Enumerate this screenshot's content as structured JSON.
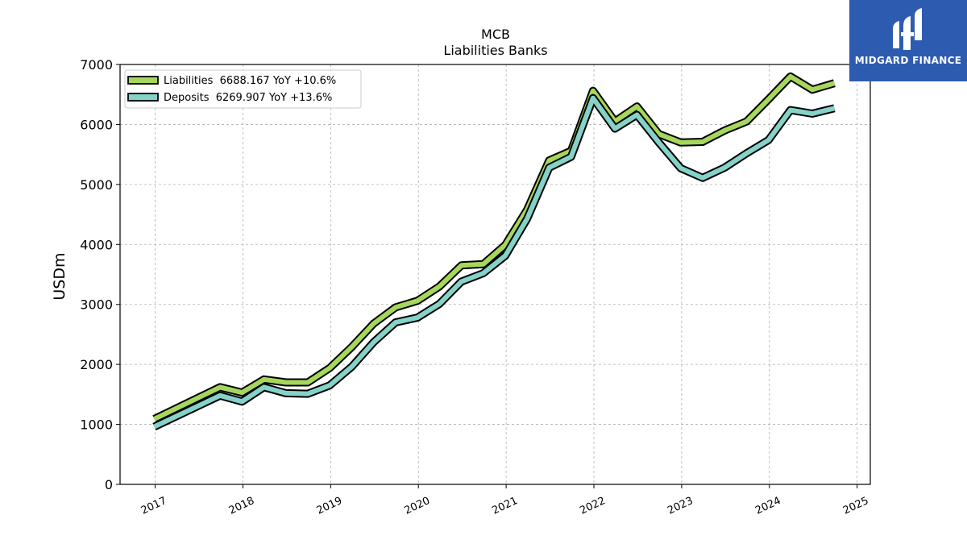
{
  "chart_data": {
    "type": "line",
    "title": "MCB",
    "subtitle": "Liabilities Banks",
    "ylabel": "USDm",
    "xlabel": "",
    "ylim": [
      0,
      7000
    ],
    "xlim": [
      2016.6,
      2025.15
    ],
    "grid": true,
    "legend_position": "top-left",
    "yticks": [
      0,
      1000,
      2000,
      3000,
      4000,
      5000,
      6000,
      7000
    ],
    "xticks": [
      2017,
      2018,
      2019,
      2020,
      2021,
      2022,
      2023,
      2024,
      2025
    ],
    "x": [
      2016.99,
      2017.74,
      2017.99,
      2018.24,
      2018.49,
      2018.74,
      2018.99,
      2019.24,
      2019.49,
      2019.74,
      2019.99,
      2020.24,
      2020.49,
      2020.74,
      2020.99,
      2021.24,
      2021.49,
      2021.74,
      2021.99,
      2022.24,
      2022.49,
      2022.74,
      2022.99,
      2023.24,
      2023.49,
      2023.74,
      2023.99,
      2024.24,
      2024.49,
      2024.74
    ],
    "series": [
      {
        "name": "Liabilities",
        "legend_label": "Liabilities  6688.167 YoY +10.6%",
        "color": "#a6d75b",
        "values": [
          1090,
          1620,
          1530,
          1750,
          1700,
          1700,
          1940,
          2290,
          2680,
          2950,
          3060,
          3300,
          3650,
          3670,
          3990,
          4580,
          5400,
          5560,
          6560,
          6050,
          6300,
          5840,
          5700,
          5710,
          5900,
          6050,
          6420,
          6800,
          6580,
          6688
        ]
      },
      {
        "name": "Deposits",
        "legend_label": "Deposits  6269.907 YoY +13.6%",
        "color": "#85d2c8",
        "values": [
          960,
          1480,
          1380,
          1620,
          1520,
          1510,
          1650,
          1960,
          2370,
          2700,
          2780,
          3010,
          3380,
          3520,
          3810,
          4430,
          5280,
          5460,
          6440,
          5930,
          6160,
          5700,
          5270,
          5110,
          5280,
          5520,
          5740,
          6240,
          6180,
          6270
        ]
      }
    ]
  },
  "logo": {
    "text": "MIDGARD FINANCE",
    "background": "#2d5bb0",
    "icon": "midgard-logo-icon"
  }
}
